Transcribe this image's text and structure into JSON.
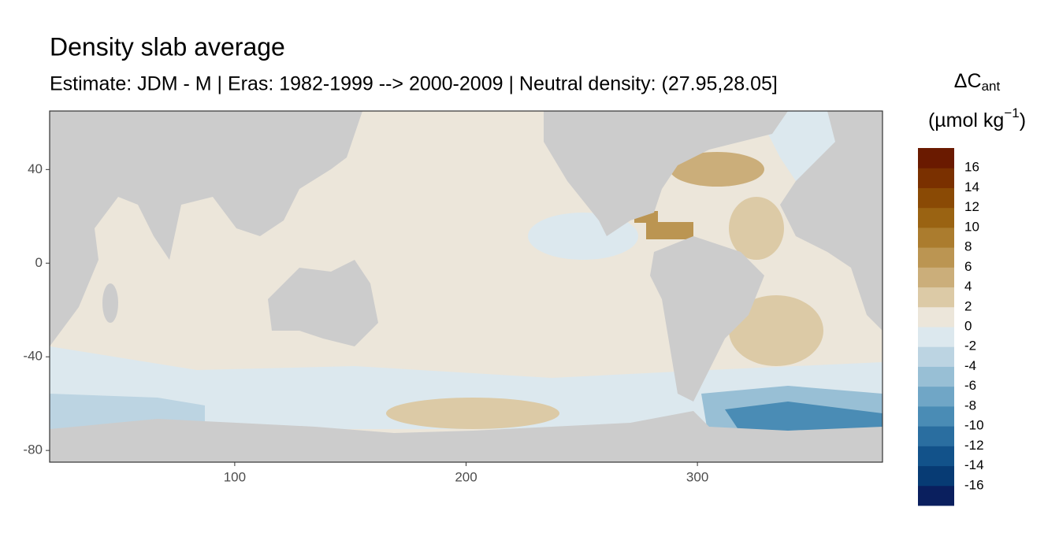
{
  "chart_data": {
    "type": "raster_map",
    "title": "Density slab average",
    "subtitle": "Estimate: JDM - M | Eras: 1982-1999 --> 2000-2009 | Neutral density: (27.95,28.05]",
    "xlim": [
      20,
      380
    ],
    "ylim": [
      -85,
      65
    ],
    "xticks": [
      100,
      200,
      300
    ],
    "yticks": [
      40,
      0,
      -40,
      -80
    ],
    "colorbar": {
      "title_symbol": "ΔC",
      "title_subscript": "ant",
      "unit_prefix": "(µmol kg",
      "unit_exponent": "−1",
      "unit_suffix": ")",
      "clim": [
        -18,
        18
      ],
      "ticks": [
        16,
        14,
        12,
        10,
        8,
        6,
        4,
        2,
        0,
        -2,
        -4,
        -6,
        -8,
        -10,
        -12,
        -14,
        -16
      ],
      "colors": [
        "#0a1f5e",
        "#073b74",
        "#12528a",
        "#2a6ea0",
        "#4a8cb5",
        "#70a6c6",
        "#98bfd5",
        "#bcd4e2",
        "#dce8ee",
        "#ece6da",
        "#dccaa6",
        "#cbae7a",
        "#bb9552",
        "#ab7c2e",
        "#9a6312",
        "#8a4a05",
        "#7a3000",
        "#6a1a00"
      ]
    }
  }
}
